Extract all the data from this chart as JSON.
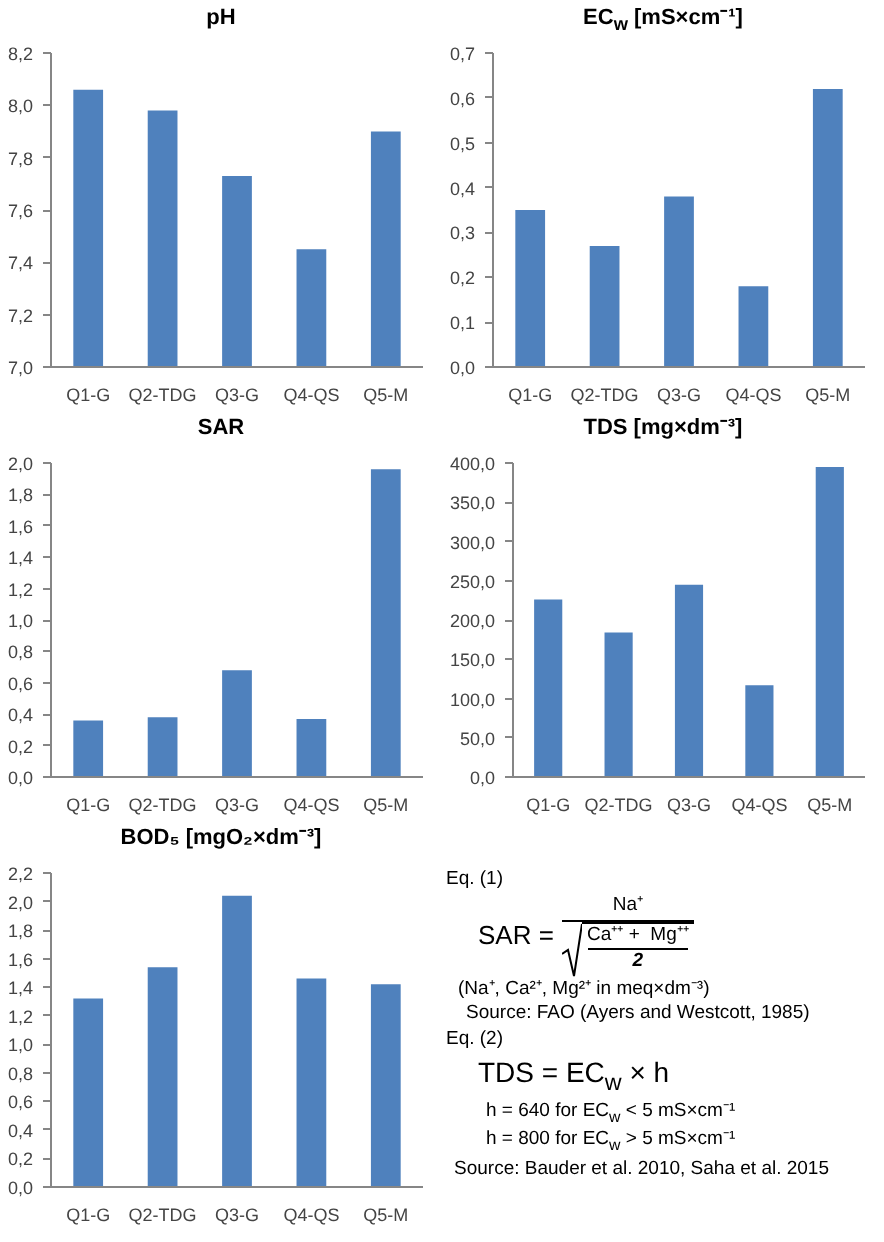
{
  "chart_data": [
    {
      "type": "bar",
      "title": "pH",
      "categories": [
        "Q1-G",
        "Q2-TDG",
        "Q3-G",
        "Q4-QS",
        "Q5-M"
      ],
      "values": [
        8.06,
        7.98,
        7.73,
        7.45,
        7.9
      ],
      "color": "#4f81bd",
      "ylim": [
        7.0,
        8.2
      ],
      "yticks": [
        {
          "value": 7.0,
          "label": "7,0"
        },
        {
          "value": 7.2,
          "label": "7,2"
        },
        {
          "value": 7.4,
          "label": "7,4"
        },
        {
          "value": 7.6,
          "label": "7,6"
        },
        {
          "value": 7.8,
          "label": "7,8"
        },
        {
          "value": 8.0,
          "label": "8,0"
        },
        {
          "value": 8.2,
          "label": "8,2"
        }
      ],
      "grid": false
    },
    {
      "type": "bar",
      "title": "EC$_{w}$ [mS×cm⁻¹]",
      "categories": [
        "Q1-G",
        "Q2-TDG",
        "Q3-G",
        "Q4-QS",
        "Q5-M"
      ],
      "values": [
        0.35,
        0.27,
        0.38,
        0.18,
        0.62
      ],
      "color": "#4f81bd",
      "ylim": [
        0.0,
        0.7
      ],
      "yticks": [
        {
          "value": 0.0,
          "label": "0,0"
        },
        {
          "value": 0.1,
          "label": "0,1"
        },
        {
          "value": 0.2,
          "label": "0,2"
        },
        {
          "value": 0.3,
          "label": "0,3"
        },
        {
          "value": 0.4,
          "label": "0,4"
        },
        {
          "value": 0.5,
          "label": "0,5"
        },
        {
          "value": 0.6,
          "label": "0,6"
        },
        {
          "value": 0.7,
          "label": "0,7"
        }
      ],
      "grid": false
    },
    {
      "type": "bar",
      "title": "SAR",
      "categories": [
        "Q1-G",
        "Q2-TDG",
        "Q3-G",
        "Q4-QS",
        "Q5-M"
      ],
      "values": [
        0.36,
        0.38,
        0.68,
        0.37,
        1.96
      ],
      "color": "#4f81bd",
      "ylim": [
        0.0,
        2.0
      ],
      "yticks": [
        {
          "value": 0.0,
          "label": "0,0"
        },
        {
          "value": 0.2,
          "label": "0,2"
        },
        {
          "value": 0.4,
          "label": "0,4"
        },
        {
          "value": 0.6,
          "label": "0,6"
        },
        {
          "value": 0.8,
          "label": "0,8"
        },
        {
          "value": 1.0,
          "label": "1,0"
        },
        {
          "value": 1.2,
          "label": "1,2"
        },
        {
          "value": 1.4,
          "label": "1,4"
        },
        {
          "value": 1.6,
          "label": "1,6"
        },
        {
          "value": 1.8,
          "label": "1,8"
        },
        {
          "value": 2.0,
          "label": "2,0"
        }
      ],
      "grid": false
    },
    {
      "type": "bar",
      "title": "TDS [mg×dm⁻³]",
      "categories": [
        "Q1-G",
        "Q2-TDG",
        "Q3-G",
        "Q4-QS",
        "Q5-M"
      ],
      "values": [
        226,
        184,
        245,
        117,
        395
      ],
      "color": "#4f81bd",
      "ylim": [
        0,
        400
      ],
      "yticks": [
        {
          "value": 0,
          "label": "0,0"
        },
        {
          "value": 50,
          "label": "50,0"
        },
        {
          "value": 100,
          "label": "100,0"
        },
        {
          "value": 150,
          "label": "150,0"
        },
        {
          "value": 200,
          "label": "200,0"
        },
        {
          "value": 250,
          "label": "250,0"
        },
        {
          "value": 300,
          "label": "300,0"
        },
        {
          "value": 350,
          "label": "350,0"
        },
        {
          "value": 400,
          "label": "400,0"
        }
      ],
      "grid": false
    },
    {
      "type": "bar",
      "title": "BOD₅ [mgO₂×dm⁻³]",
      "categories": [
        "Q1-G",
        "Q2-TDG",
        "Q3-G",
        "Q4-QS",
        "Q5-M"
      ],
      "values": [
        1.32,
        1.54,
        2.04,
        1.46,
        1.42
      ],
      "color": "#4f81bd",
      "ylim": [
        0.0,
        2.2
      ],
      "yticks": [
        {
          "value": 0.0,
          "label": "0,0"
        },
        {
          "value": 0.2,
          "label": "0,2"
        },
        {
          "value": 0.4,
          "label": "0,4"
        },
        {
          "value": 0.6,
          "label": "0,6"
        },
        {
          "value": 0.8,
          "label": "0,8"
        },
        {
          "value": 1.0,
          "label": "1,0"
        },
        {
          "value": 1.2,
          "label": "1,2"
        },
        {
          "value": 1.4,
          "label": "1,4"
        },
        {
          "value": 1.6,
          "label": "1,6"
        },
        {
          "value": 1.8,
          "label": "1,8"
        },
        {
          "value": 2.0,
          "label": "2,0"
        },
        {
          "value": 2.2,
          "label": "2,2"
        }
      ],
      "grid": false
    },
    {
      "type": "other",
      "annotations": [
        "Eq. (1)",
        "SAR =",
        "Na⁺",
        "Ca⁺⁺ +  Mg⁺⁺",
        "2",
        "(Na⁺, Ca²⁺, Mg²⁺ in meq×dm⁻³)",
        "Source: FAO (Ayers and Westcott, 1985)",
        "Eq. (2)",
        "TDS = EC$_{w}$ × h",
        "h = 640 for EC$_{w}$ < 5 mS×cm⁻¹",
        "h = 800 for EC$_{w}$ > 5 mS×cm⁻¹",
        "Source: Bauder et al. 2010, Saha et al. 2015"
      ]
    }
  ]
}
